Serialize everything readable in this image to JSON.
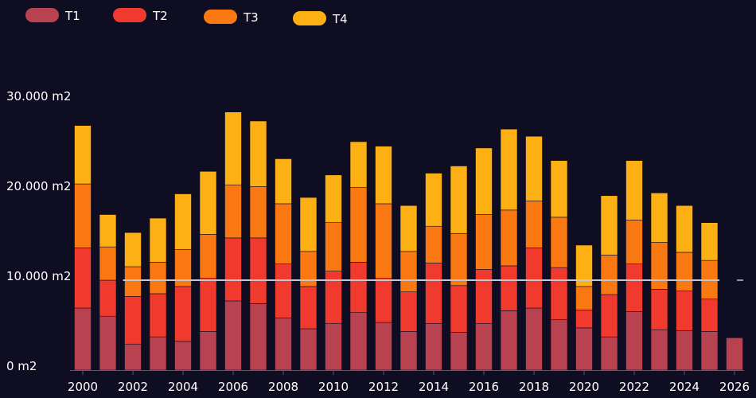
{
  "colors": {
    "background": "#0f0d22",
    "T1": "#b84250",
    "T2": "#f03a2e",
    "T3": "#fa7812",
    "T4": "#fcb014",
    "reference_line": "#c8c8d4",
    "axis": "#5a5a6e",
    "text": "#ffffff"
  },
  "chart_data": {
    "type": "bar",
    "stacked": true,
    "title": "",
    "xlabel": "",
    "ylabel": "",
    "ylim": [
      0,
      30000
    ],
    "y_ticks": [
      0,
      10000,
      20000,
      30000
    ],
    "y_tick_labels": [
      "0 m2",
      "10.000 m2",
      "20.000 m2",
      "30.000 m2"
    ],
    "x_tick_labels": [
      "2000",
      "2002",
      "2004",
      "2006",
      "2008",
      "2010",
      "2012",
      "2014",
      "2016",
      "2018",
      "2020",
      "2022",
      "2024",
      "2026"
    ],
    "categories": [
      "2000",
      "2001",
      "2002",
      "2003",
      "2004",
      "2005",
      "2006",
      "2007",
      "2008",
      "2009",
      "2010",
      "2011",
      "2012",
      "2013",
      "2014",
      "2015",
      "2016",
      "2017",
      "2018",
      "2019",
      "2020",
      "2021",
      "2022",
      "2023",
      "2024",
      "2025",
      "2026"
    ],
    "reference_line": {
      "value": 10000,
      "x_start": "2002",
      "x_end": "2025"
    },
    "legend_position": "top-left",
    "series": [
      {
        "name": "T1",
        "values": [
          6900,
          6000,
          2900,
          3700,
          3200,
          4300,
          7700,
          7400,
          5800,
          4600,
          5200,
          6400,
          5300,
          4300,
          5200,
          4200,
          5200,
          6600,
          6900,
          5600,
          4700,
          3700,
          6500,
          4500,
          4400,
          4300,
          3600
        ]
      },
      {
        "name": "T2",
        "values": [
          6700,
          4000,
          5300,
          4800,
          6100,
          5900,
          7000,
          7300,
          6000,
          4700,
          5800,
          5600,
          4900,
          4400,
          6700,
          5200,
          6000,
          5000,
          6700,
          5800,
          2000,
          4700,
          5300,
          4500,
          4400,
          3600,
          0
        ]
      },
      {
        "name": "T3",
        "values": [
          7100,
          3700,
          3300,
          3500,
          4100,
          4900,
          5900,
          5700,
          6700,
          3900,
          5400,
          8300,
          8300,
          4500,
          4100,
          5800,
          6100,
          6200,
          5200,
          5600,
          2600,
          4400,
          4900,
          5200,
          4300,
          4300,
          0
        ]
      },
      {
        "name": "T4",
        "values": [
          6500,
          3600,
          3800,
          4900,
          6200,
          7000,
          8100,
          7300,
          5000,
          6000,
          5300,
          5100,
          6400,
          5100,
          5900,
          7500,
          7400,
          9000,
          7200,
          6300,
          4600,
          6600,
          6600,
          5500,
          5200,
          4200,
          0
        ]
      }
    ]
  }
}
